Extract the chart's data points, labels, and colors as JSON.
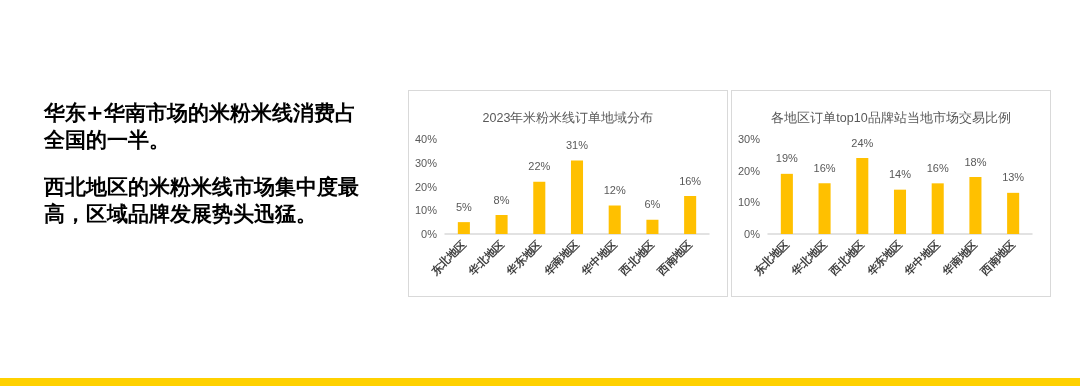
{
  "chart_data": [
    {
      "type": "other",
      "annotations": [
        "华东+华南市场的米粉米线消费占全国的一半。",
        "西北地区的米粉米线市场集中度最高，区域品牌发展势头迅猛。"
      ]
    },
    {
      "type": "bar",
      "title": "2023年米粉米线订单地域分布",
      "categories": [
        "东北地区",
        "华北地区",
        "华东地区",
        "华南地区",
        "华中地区",
        "西北地区",
        "西南地区"
      ],
      "values": [
        5,
        8,
        22,
        31,
        12,
        6,
        16
      ],
      "value_labels": [
        "5%",
        "8%",
        "22%",
        "31%",
        "12%",
        "6%",
        "16%"
      ],
      "color": "#ffc000",
      "ylim": [
        0,
        40
      ],
      "yticks": [
        {
          "value": 0,
          "label": "0%"
        },
        {
          "value": 10,
          "label": "10%"
        },
        {
          "value": 20,
          "label": "20%"
        },
        {
          "value": 30,
          "label": "30%"
        },
        {
          "value": 40,
          "label": "40%"
        }
      ],
      "grid": false
    },
    {
      "type": "bar",
      "title": "各地区订单top10品牌站当地市场交易比例",
      "categories": [
        "东北地区",
        "华北地区",
        "西北地区",
        "华东地区",
        "华中地区",
        "华南地区",
        "西南地区"
      ],
      "values": [
        19,
        16,
        24,
        14,
        16,
        18,
        13
      ],
      "value_labels": [
        "19%",
        "16%",
        "24%",
        "14%",
        "16%",
        "18%",
        "13%"
      ],
      "color": "#ffc000",
      "ylim": [
        0,
        30
      ],
      "yticks": [
        {
          "value": 0,
          "label": "0%"
        },
        {
          "value": 10,
          "label": "10%"
        },
        {
          "value": 20,
          "label": "20%"
        },
        {
          "value": 30,
          "label": "30%"
        }
      ],
      "grid": false
    }
  ]
}
